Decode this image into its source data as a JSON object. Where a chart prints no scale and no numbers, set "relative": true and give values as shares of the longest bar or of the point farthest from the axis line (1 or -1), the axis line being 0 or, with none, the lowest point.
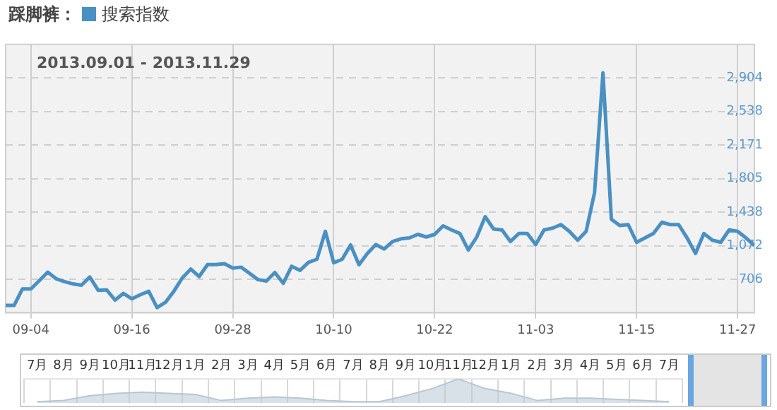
{
  "chart_data": [
    {
      "type": "line",
      "title": "踩脚裤：",
      "subtitle": "2013.09.01 - 2013.11.29",
      "legend": "top left",
      "grid": true,
      "marker": "none",
      "x": [
        "2013-09-01",
        "2013-09-02",
        "2013-09-03",
        "2013-09-04",
        "2013-09-05",
        "2013-09-06",
        "2013-09-07",
        "2013-09-08",
        "2013-09-09",
        "2013-09-10",
        "2013-09-11",
        "2013-09-12",
        "2013-09-13",
        "2013-09-14",
        "2013-09-15",
        "2013-09-16",
        "2013-09-17",
        "2013-09-18",
        "2013-09-19",
        "2013-09-20",
        "2013-09-21",
        "2013-09-22",
        "2013-09-23",
        "2013-09-24",
        "2013-09-25",
        "2013-09-26",
        "2013-09-27",
        "2013-09-28",
        "2013-09-29",
        "2013-09-30",
        "2013-10-01",
        "2013-10-02",
        "2013-10-03",
        "2013-10-04",
        "2013-10-05",
        "2013-10-06",
        "2013-10-07",
        "2013-10-08",
        "2013-10-09",
        "2013-10-10",
        "2013-10-11",
        "2013-10-12",
        "2013-10-13",
        "2013-10-14",
        "2013-10-15",
        "2013-10-16",
        "2013-10-17",
        "2013-10-18",
        "2013-10-19",
        "2013-10-20",
        "2013-10-21",
        "2013-10-22",
        "2013-10-23",
        "2013-10-24",
        "2013-10-25",
        "2013-10-26",
        "2013-10-27",
        "2013-10-28",
        "2013-10-29",
        "2013-10-30",
        "2013-10-31",
        "2013-11-01",
        "2013-11-02",
        "2013-11-03",
        "2013-11-04",
        "2013-11-05",
        "2013-11-06",
        "2013-11-07",
        "2013-11-08",
        "2013-11-09",
        "2013-11-10",
        "2013-11-11",
        "2013-11-12",
        "2013-11-13",
        "2013-11-14",
        "2013-11-15",
        "2013-11-16",
        "2013-11-17",
        "2013-11-18",
        "2013-11-19",
        "2013-11-20",
        "2013-11-21",
        "2013-11-22",
        "2013-11-23",
        "2013-11-24",
        "2013-11-25",
        "2013-11-26",
        "2013-11-27",
        "2013-11-28",
        "2013-11-29"
      ],
      "series": [
        {
          "name": "搜索指数",
          "color": "#4a90c2",
          "values": [
            420,
            420,
            600,
            600,
            690,
            783,
            711,
            680,
            655,
            640,
            730,
            585,
            590,
            478,
            551,
            492,
            536,
            575,
            396,
            454,
            575,
            720,
            817,
            735,
            866,
            866,
            876,
            827,
            837,
            769,
            701,
            687,
            779,
            662,
            847,
            803,
            890,
            924,
            1229,
            885,
            924,
            1080,
            864,
            987,
            1084,
            1036,
            1118,
            1147,
            1157,
            1196,
            1167,
            1196,
            1288,
            1244,
            1205,
            1026,
            1167,
            1389,
            1254,
            1244,
            1118,
            1205,
            1205,
            1084,
            1244,
            1263,
            1302,
            1229,
            1132,
            1229,
            1651,
            2960,
            1360,
            1292,
            1302,
            1109,
            1157,
            1205,
            1327,
            1302,
            1302,
            1157,
            987,
            1205,
            1132,
            1109,
            1244,
            1229,
            1157,
            1074
          ]
        }
      ],
      "xlim": [
        "2013-09-01",
        "2013-11-29"
      ],
      "xticks": [
        {
          "value": "2013-09-04",
          "label": "09-04"
        },
        {
          "value": "2013-09-16",
          "label": "09-16"
        },
        {
          "value": "2013-09-28",
          "label": "09-28"
        },
        {
          "value": "2013-10-10",
          "label": "10-10"
        },
        {
          "value": "2013-10-22",
          "label": "10-22"
        },
        {
          "value": "2013-11-03",
          "label": "11-03"
        },
        {
          "value": "2013-11-15",
          "label": "11-15"
        },
        {
          "value": "2013-11-27",
          "label": "11-27"
        }
      ],
      "ylim": [
        340,
        3270
      ],
      "yticks": [
        706,
        {
          "value": 1072,
          "label": "1,072"
        },
        {
          "value": 1438,
          "label": "1,438"
        },
        {
          "value": 1805,
          "label": "1,805"
        },
        {
          "value": 2171,
          "label": "2,171"
        },
        {
          "value": 2538,
          "label": "2,538"
        },
        {
          "value": 2904,
          "label": "2,904"
        }
      ]
    },
    {
      "type": "area",
      "relative": true,
      "grid": "x",
      "color": "#b7c7d3",
      "categories": [
        "7月",
        "8月",
        "9月",
        "10月",
        "11月",
        "12月",
        "1月",
        "2月",
        "3月",
        "4月",
        "5月",
        "6月",
        "7月",
        "8月",
        "9月",
        "10月",
        "11月",
        "12月",
        "1月",
        "2月",
        "3月",
        "4月",
        "5月",
        "6月",
        "7月"
      ],
      "values": [
        0.05,
        0.1,
        0.3,
        0.4,
        0.45,
        0.4,
        0.35,
        0.1,
        0.2,
        0.25,
        0.2,
        0.1,
        0.05,
        0.05,
        0.3,
        0.6,
        1,
        0.6,
        0.4,
        0.1,
        0.2,
        0.2,
        0.15,
        0.1,
        0.05
      ]
    }
  ]
}
